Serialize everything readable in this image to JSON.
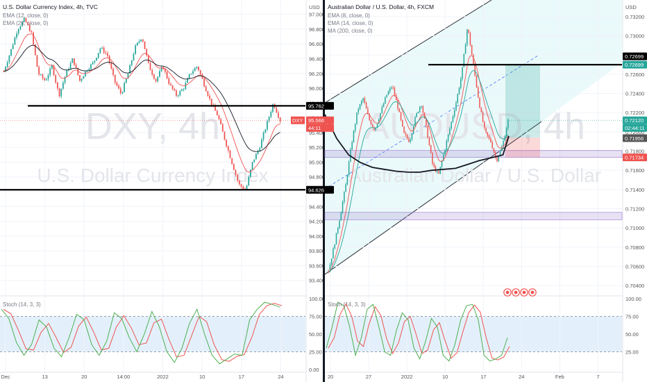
{
  "charts": [
    {
      "id": "dxy",
      "symbol_title": "U.S. Dollar Currency Index, 4h, TVC",
      "indicators": [
        "EMA (12, close, 0)",
        "EMA (26, close, 0)"
      ],
      "currency": "USD",
      "watermark_big": "DXY, 4h",
      "watermark_sub": "U.S. Dollar Currency Index",
      "oscillator_label": "Stoch (14, 3, 3)",
      "price_ticks": [
        "97.000",
        "96.800",
        "96.600",
        "96.400",
        "96.200",
        "96.000",
        "95.800",
        "95.600",
        "95.400",
        "95.200",
        "95.000",
        "94.800",
        "94.600",
        "94.400",
        "94.200",
        "94.000",
        "93.800",
        "93.600",
        "93.400"
      ],
      "osc_ticks": [
        "100.00",
        "75.00",
        "50.00",
        "25.00",
        "0.00"
      ],
      "date_ticks": [
        "Dec",
        "13",
        "20",
        "14:00",
        "2022",
        "10",
        "17",
        "24"
      ],
      "badges": [
        {
          "name": "resistance-level-badge",
          "text": "95.762",
          "bg": "#000000",
          "fg": "#ffffff"
        },
        {
          "name": "support-level-badge",
          "text": "94.626",
          "bg": "#000000",
          "fg": "#ffffff"
        },
        {
          "name": "dxy-last-price-badge",
          "text": "95.566",
          "bg": "#ef5350",
          "fg": "#ffffff"
        },
        {
          "name": "dxy-countdown-badge",
          "text": "44:11",
          "bg": "#ef5350",
          "fg": "#ffffff"
        }
      ],
      "symbol_tag": "DXY"
    },
    {
      "id": "audusd",
      "symbol_title": "Australian Dollar / U.S. Dollar, 4h, FXCM",
      "indicators": [
        "EMA (8, close, 0)",
        "EMA (14, close, 0)",
        "MA (200, close, 0)"
      ],
      "currency": "USD",
      "watermark_big": "AUDUSD, 4h",
      "watermark_sub": "Australian Dollar / U.S. Dollar",
      "oscillator_label": "Stoch (14, 3, 3)",
      "price_ticks": [
        "0.73200",
        "0.73000",
        "0.72800",
        "0.72600",
        "0.72400",
        "0.72200",
        "0.72000",
        "0.71800",
        "0.71600",
        "0.71400",
        "0.71200",
        "0.71000",
        "0.70800",
        "0.70600",
        "0.70400"
      ],
      "osc_ticks": [
        "100.00",
        "75.00",
        "50.00",
        "25.00"
      ],
      "date_ticks": [
        "20",
        "27",
        "2022",
        "10",
        "17",
        "24",
        "Feb",
        "7"
      ],
      "badges": [
        {
          "name": "level-badge-0-72699-black",
          "text": "0.72699",
          "bg": "#000000",
          "fg": "#ffffff"
        },
        {
          "name": "target-badge-0-72699",
          "text": "0.72699",
          "bg": "#26a69a",
          "fg": "#ffffff"
        },
        {
          "name": "audusd-last-price-badge",
          "text": "0.72120",
          "bg": "#26a69a",
          "fg": "#ffffff"
        },
        {
          "name": "audusd-countdown-badge",
          "text": "02:44:11",
          "bg": "#26a69a",
          "fg": "#ffffff"
        },
        {
          "name": "ma200-badge",
          "text": "0.71956",
          "bg": "#555555",
          "fg": "#ffffff"
        },
        {
          "name": "stop-badge",
          "text": "0.71734",
          "bg": "#ef5350",
          "fg": "#ffffff"
        }
      ]
    }
  ],
  "chart_data": [
    {
      "type": "candlestick",
      "symbol": "DXY",
      "timeframe": "4h",
      "title": "U.S. Dollar Currency Index, 4h, TVC",
      "ylim": [
        93.2,
        97.1
      ],
      "close_path": [
        [
          0,
          96.23
        ],
        [
          2,
          96.5
        ],
        [
          4,
          96.8
        ],
        [
          6,
          96.93
        ],
        [
          8,
          96.75
        ],
        [
          10,
          96.2
        ],
        [
          12,
          96.1
        ],
        [
          14,
          96.3
        ],
        [
          16,
          95.9
        ],
        [
          18,
          96.2
        ],
        [
          20,
          96.4
        ],
        [
          22,
          96.1
        ],
        [
          24,
          96.25
        ],
        [
          26,
          96.35
        ],
        [
          28,
          96.55
        ],
        [
          30,
          96.45
        ],
        [
          32,
          96.1
        ],
        [
          34,
          95.92
        ],
        [
          36,
          96.2
        ],
        [
          38,
          96.55
        ],
        [
          40,
          96.7
        ],
        [
          42,
          96.3
        ],
        [
          44,
          96.1
        ],
        [
          46,
          96.3
        ],
        [
          48,
          96.05
        ],
        [
          50,
          95.9
        ],
        [
          52,
          96.0
        ],
        [
          54,
          96.2
        ],
        [
          56,
          96.3
        ],
        [
          58,
          96.05
        ],
        [
          60,
          95.8
        ],
        [
          62,
          95.62
        ],
        [
          64,
          95.3
        ],
        [
          66,
          95.0
        ],
        [
          68,
          94.7
        ],
        [
          70,
          94.62
        ],
        [
          72,
          95.0
        ],
        [
          74,
          95.2
        ],
        [
          76,
          95.5
        ],
        [
          78,
          95.8
        ],
        [
          80,
          95.566
        ]
      ],
      "levels": [
        95.762,
        94.626
      ],
      "last_price": 95.566,
      "stoch_k": [
        85,
        72,
        38,
        20,
        35,
        70,
        60,
        30,
        18,
        45,
        78,
        70,
        35,
        20,
        40,
        80,
        72,
        45,
        25,
        50,
        82,
        60,
        25,
        10,
        30,
        65,
        85,
        50,
        20,
        8,
        15,
        22,
        20,
        70,
        85,
        95,
        92,
        88
      ],
      "stoch_bands": [
        25,
        75
      ]
    },
    {
      "type": "candlestick",
      "symbol": "AUDUSD",
      "timeframe": "4h",
      "title": "Australian Dollar / U.S. Dollar, 4h, FXCM",
      "ylim": [
        0.703,
        0.733
      ],
      "close_path": [
        [
          0,
          0.7055
        ],
        [
          2,
          0.7082
        ],
        [
          4,
          0.7112
        ],
        [
          6,
          0.7145
        ],
        [
          8,
          0.7188
        ],
        [
          10,
          0.7222
        ],
        [
          12,
          0.7235
        ],
        [
          14,
          0.7213
        ],
        [
          16,
          0.7202
        ],
        [
          18,
          0.722
        ],
        [
          20,
          0.7238
        ],
        [
          22,
          0.7248
        ],
        [
          24,
          0.7225
        ],
        [
          26,
          0.7198
        ],
        [
          28,
          0.719
        ],
        [
          30,
          0.7215
        ],
        [
          32,
          0.723
        ],
        [
          34,
          0.72
        ],
        [
          36,
          0.7165
        ],
        [
          38,
          0.7155
        ],
        [
          40,
          0.718
        ],
        [
          42,
          0.7205
        ],
        [
          44,
          0.723
        ],
        [
          46,
          0.726
        ],
        [
          48,
          0.731
        ],
        [
          50,
          0.727
        ],
        [
          52,
          0.723
        ],
        [
          54,
          0.72
        ],
        [
          56,
          0.719
        ],
        [
          58,
          0.717
        ],
        [
          60,
          0.7185
        ],
        [
          62,
          0.7212
        ]
      ],
      "ma200": [
        [
          0,
          0.7218
        ],
        [
          4,
          0.7193
        ],
        [
          8,
          0.7176
        ],
        [
          12,
          0.7168
        ],
        [
          16,
          0.7163
        ],
        [
          20,
          0.7161
        ],
        [
          24,
          0.7159
        ],
        [
          28,
          0.7158
        ],
        [
          32,
          0.7158
        ],
        [
          36,
          0.716
        ],
        [
          40,
          0.7161
        ],
        [
          44,
          0.7162
        ],
        [
          48,
          0.7166
        ],
        [
          52,
          0.717
        ],
        [
          56,
          0.7173
        ],
        [
          60,
          0.7176
        ],
        [
          62,
          0.71956
        ]
      ],
      "levels": [
        0.72699
      ],
      "position": {
        "entry": 0.7194,
        "target": 0.72699,
        "stop": 0.71734
      },
      "zones": [
        [
          0.71734,
          0.71806
        ],
        [
          0.71085,
          0.71162
        ]
      ],
      "last_price": 0.7212,
      "stoch_k": [
        30,
        60,
        95,
        90,
        60,
        20,
        45,
        85,
        92,
        60,
        25,
        20,
        55,
        80,
        70,
        30,
        15,
        40,
        72,
        60,
        20,
        12,
        35,
        70,
        90,
        92,
        70,
        20,
        12,
        15,
        20,
        45
      ],
      "stoch_bands": [
        25,
        75
      ]
    }
  ]
}
